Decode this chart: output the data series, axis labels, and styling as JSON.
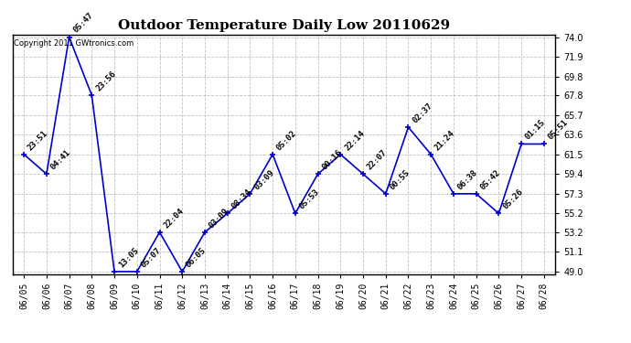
{
  "title": "Outdoor Temperature Daily Low 20110629",
  "copyright": "Copyright 2011 GWtronics.com",
  "line_color": "#0000cc",
  "bg_color": "#ffffff",
  "grid_color": "#bbbbbb",
  "dates": [
    "06/05",
    "06/06",
    "06/07",
    "06/08",
    "06/09",
    "06/10",
    "06/11",
    "06/12",
    "06/13",
    "06/14",
    "06/15",
    "06/16",
    "06/17",
    "06/18",
    "06/19",
    "06/20",
    "06/21",
    "06/22",
    "06/23",
    "06/24",
    "06/25",
    "06/26",
    "06/27",
    "06/28"
  ],
  "values": [
    61.5,
    59.4,
    74.0,
    67.8,
    49.0,
    49.0,
    53.2,
    49.0,
    53.2,
    55.2,
    57.3,
    61.5,
    55.2,
    59.4,
    61.5,
    59.4,
    57.3,
    64.4,
    61.5,
    57.3,
    57.3,
    55.2,
    62.6,
    62.6
  ],
  "annotations": [
    "23:51",
    "04:41",
    "05:47",
    "23:56",
    "13:05",
    "05:07",
    "22:04",
    "06:05",
    "03:09",
    "08:34",
    "03:09",
    "05:02",
    "05:53",
    "00:16",
    "22:14",
    "22:07",
    "00:55",
    "02:37",
    "21:24",
    "06:38",
    "05:42",
    "05:26",
    "01:15",
    "05:51"
  ],
  "ylim": [
    49.0,
    74.0
  ],
  "yticks": [
    49.0,
    51.1,
    53.2,
    55.2,
    57.3,
    59.4,
    61.5,
    63.6,
    65.7,
    67.8,
    69.8,
    71.9,
    74.0
  ],
  "title_fontsize": 11,
  "tick_fontsize": 7,
  "annot_fontsize": 6.5,
  "copyright_fontsize": 6
}
